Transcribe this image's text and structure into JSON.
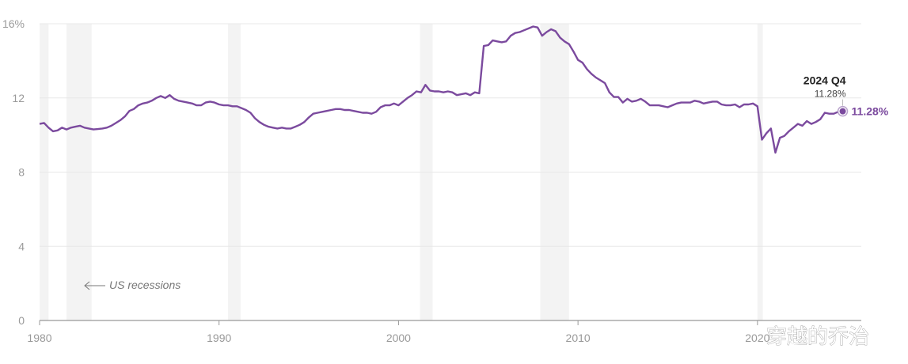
{
  "chart_data": {
    "type": "line",
    "x_unit": "year",
    "ylim": [
      0,
      16
    ],
    "xlim": [
      1980,
      2025.3
    ],
    "y_ticks": [
      {
        "value": 16,
        "label": "16%"
      },
      {
        "value": 12,
        "label": "12"
      },
      {
        "value": 8,
        "label": "8"
      },
      {
        "value": 4,
        "label": "4"
      },
      {
        "value": 0,
        "label": "0"
      }
    ],
    "x_ticks": [
      {
        "value": 1980,
        "label": "1980"
      },
      {
        "value": 1990,
        "label": "1990"
      },
      {
        "value": 2000,
        "label": "2000"
      },
      {
        "value": 2010,
        "label": "2010"
      },
      {
        "value": 2020,
        "label": "2020"
      }
    ],
    "grid": true,
    "recessions": [
      [
        1980.0,
        1980.5
      ],
      [
        1981.5,
        1982.9
      ],
      [
        1990.5,
        1991.2
      ],
      [
        2001.2,
        2001.9
      ],
      [
        2007.9,
        2009.5
      ],
      [
        2020.0,
        2020.3
      ]
    ],
    "recession_label": "US recessions",
    "line_color": "#7b4a9e",
    "recession_color": "#f3f3f3",
    "series": [
      {
        "x": [
          1980.0,
          1980.25,
          1980.5,
          1980.75,
          1981.0,
          1981.25,
          1981.5,
          1981.75,
          1982.0,
          1982.25,
          1982.5,
          1982.75,
          1983.0,
          1983.25,
          1983.5,
          1983.75,
          1984.0,
          1984.25,
          1984.5,
          1984.75,
          1985.0,
          1985.25,
          1985.5,
          1985.75,
          1986.0,
          1986.25,
          1986.5,
          1986.75,
          1987.0,
          1987.25,
          1987.5,
          1987.75,
          1988.0,
          1988.25,
          1988.5,
          1988.75,
          1989.0,
          1989.25,
          1989.5,
          1989.75,
          1990.0,
          1990.25,
          1990.5,
          1990.75,
          1991.0,
          1991.25,
          1991.5,
          1991.75,
          1992.0,
          1992.25,
          1992.5,
          1992.75,
          1993.0,
          1993.25,
          1993.5,
          1993.75,
          1994.0,
          1994.25,
          1994.5,
          1994.75,
          1995.0,
          1995.25,
          1995.5,
          1995.75,
          1996.0,
          1996.25,
          1996.5,
          1996.75,
          1997.0,
          1997.25,
          1997.5,
          1997.75,
          1998.0,
          1998.25,
          1998.5,
          1998.75,
          1999.0,
          1999.25,
          1999.5,
          1999.75,
          2000.0,
          2000.25,
          2000.5,
          2000.75,
          2001.0,
          2001.25,
          2001.5,
          2001.75,
          2002.0,
          2002.25,
          2002.5,
          2002.75,
          2003.0,
          2003.25,
          2003.5,
          2003.75,
          2004.0,
          2004.25,
          2004.5,
          2004.75,
          2005.0,
          2005.25,
          2005.5,
          2005.75,
          2006.0,
          2006.25,
          2006.5,
          2006.75,
          2007.0,
          2007.25,
          2007.5,
          2007.75,
          2008.0,
          2008.25,
          2008.5,
          2008.75,
          2009.0,
          2009.25,
          2009.5,
          2009.75,
          2010.0,
          2010.25,
          2010.5,
          2010.75,
          2011.0,
          2011.25,
          2011.5,
          2011.75,
          2012.0,
          2012.25,
          2012.5,
          2012.75,
          2013.0,
          2013.25,
          2013.5,
          2013.75,
          2014.0,
          2014.25,
          2014.5,
          2014.75,
          2015.0,
          2015.25,
          2015.5,
          2015.75,
          2016.0,
          2016.25,
          2016.5,
          2016.75,
          2017.0,
          2017.25,
          2017.5,
          2017.75,
          2018.0,
          2018.25,
          2018.5,
          2018.75,
          2019.0,
          2019.25,
          2019.5,
          2019.75,
          2020.0,
          2020.25,
          2020.5,
          2020.75,
          2021.0,
          2021.25,
          2021.5,
          2021.75,
          2022.0,
          2022.25,
          2022.5,
          2022.75,
          2023.0,
          2023.25,
          2023.5,
          2023.75,
          2024.0,
          2024.25,
          2024.5,
          2024.75
        ],
        "y": [
          10.6,
          10.65,
          10.4,
          10.2,
          10.25,
          10.4,
          10.3,
          10.4,
          10.45,
          10.5,
          10.4,
          10.35,
          10.3,
          10.32,
          10.35,
          10.4,
          10.5,
          10.65,
          10.8,
          11.0,
          11.3,
          11.4,
          11.6,
          11.7,
          11.75,
          11.85,
          12.0,
          12.1,
          12.0,
          12.15,
          11.95,
          11.85,
          11.8,
          11.75,
          11.7,
          11.6,
          11.6,
          11.75,
          11.8,
          11.75,
          11.65,
          11.6,
          11.6,
          11.55,
          11.55,
          11.45,
          11.35,
          11.2,
          10.9,
          10.7,
          10.55,
          10.45,
          10.4,
          10.35,
          10.4,
          10.35,
          10.35,
          10.45,
          10.55,
          10.7,
          10.95,
          11.15,
          11.2,
          11.25,
          11.3,
          11.35,
          11.4,
          11.4,
          11.35,
          11.35,
          11.3,
          11.25,
          11.2,
          11.2,
          11.15,
          11.25,
          11.5,
          11.6,
          11.6,
          11.7,
          11.6,
          11.8,
          12.0,
          12.15,
          12.35,
          12.3,
          12.7,
          12.4,
          12.35,
          12.35,
          12.3,
          12.35,
          12.3,
          12.15,
          12.2,
          12.25,
          12.15,
          12.3,
          12.25,
          14.8,
          14.85,
          15.1,
          15.05,
          15.0,
          15.05,
          15.35,
          15.5,
          15.55,
          15.65,
          15.75,
          15.85,
          15.8,
          15.35,
          15.55,
          15.7,
          15.6,
          15.25,
          15.05,
          14.9,
          14.5,
          14.05,
          13.9,
          13.55,
          13.3,
          13.1,
          12.95,
          12.8,
          12.3,
          12.05,
          12.05,
          11.75,
          11.95,
          11.8,
          11.85,
          11.95,
          11.8,
          11.6,
          11.6,
          11.6,
          11.55,
          11.5,
          11.6,
          11.7,
          11.75,
          11.75,
          11.75,
          11.85,
          11.8,
          11.7,
          11.75,
          11.8,
          11.8,
          11.65,
          11.6,
          11.6,
          11.65,
          11.5,
          11.65,
          11.65,
          11.7,
          11.55,
          9.75,
          10.1,
          10.35,
          9.05,
          9.85,
          9.95,
          10.2,
          10.4,
          10.6,
          10.5,
          10.75,
          10.6,
          10.7,
          10.85,
          11.2,
          11.15,
          11.15,
          11.25,
          11.28
        ]
      }
    ],
    "annotation": {
      "title": "2024 Q4",
      "value_label": "11.28%"
    },
    "end_label": "11.28%"
  },
  "watermark": "穿越的乔治"
}
